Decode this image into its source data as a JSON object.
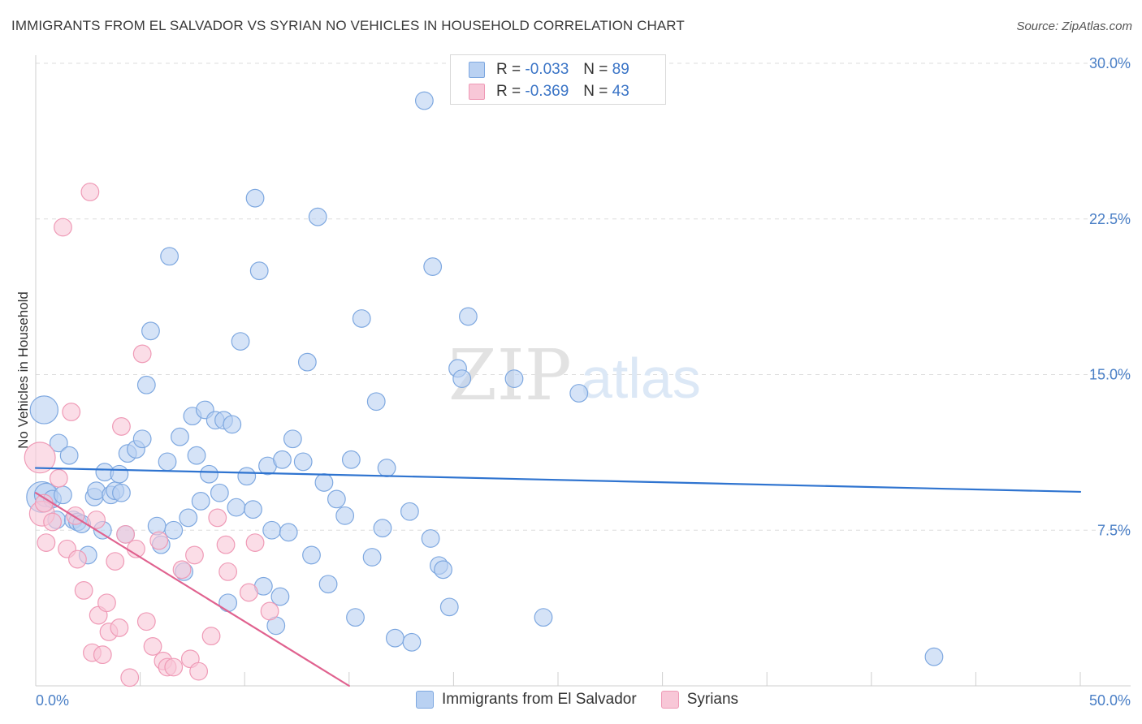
{
  "chart_data": {
    "type": "scatter",
    "title": "IMMIGRANTS FROM EL SALVADOR VS SYRIAN NO VEHICLES IN HOUSEHOLD CORRELATION CHART",
    "source": "Source: ZipAtlas.com",
    "xlabel": "",
    "ylabel": "No Vehicles in Household",
    "xlim": [
      0,
      50
    ],
    "ylim": [
      0,
      30
    ],
    "x_tick_labels": [
      "0.0%",
      "50.0%"
    ],
    "y_ticks": [
      7.5,
      15.0,
      22.5,
      30.0
    ],
    "y_tick_labels": [
      "7.5%",
      "15.0%",
      "22.5%",
      "30.0%"
    ],
    "grid": true,
    "watermark": {
      "zip": "ZIP",
      "atlas": "atlas"
    },
    "legend": {
      "r_label": "R =",
      "n_label": "N =",
      "rows": [
        {
          "r": "-0.033",
          "n": "89"
        },
        {
          "r": "-0.369",
          "n": "43"
        }
      ]
    },
    "series": [
      {
        "name": "Immigrants from El Salvador",
        "color": "#7ea8e0",
        "fill": "#b9d1f2",
        "line_color": "#2f74d0",
        "trend": {
          "x": [
            0,
            50
          ],
          "y": [
            10.5,
            9.35
          ]
        },
        "points": [
          [
            0.3,
            9.1,
            2.1
          ],
          [
            0.4,
            13.3,
            1.9
          ],
          [
            0.5,
            9.2,
            1.6
          ],
          [
            0.8,
            9.0,
            1.2
          ],
          [
            1.0,
            8.0,
            1.2
          ],
          [
            1.1,
            11.7,
            1.2
          ],
          [
            1.3,
            9.2,
            1.2
          ],
          [
            1.6,
            11.1,
            1.2
          ],
          [
            1.8,
            8.0,
            1.2
          ],
          [
            2.0,
            7.9,
            1.2
          ],
          [
            2.2,
            7.8,
            1.2
          ],
          [
            2.5,
            6.3,
            1.2
          ],
          [
            2.8,
            9.1,
            1.2
          ],
          [
            2.9,
            9.4,
            1.2
          ],
          [
            3.2,
            7.5,
            1.2
          ],
          [
            3.3,
            10.3,
            1.2
          ],
          [
            3.6,
            9.2,
            1.2
          ],
          [
            3.8,
            9.4,
            1.2
          ],
          [
            4.0,
            10.2,
            1.2
          ],
          [
            4.1,
            9.3,
            1.2
          ],
          [
            4.3,
            7.3,
            1.2
          ],
          [
            4.4,
            11.2,
            1.2
          ],
          [
            4.8,
            11.4,
            1.2
          ],
          [
            5.1,
            11.9,
            1.2
          ],
          [
            5.3,
            14.5,
            1.2
          ],
          [
            5.5,
            17.1,
            1.2
          ],
          [
            5.8,
            7.7,
            1.2
          ],
          [
            6.0,
            6.8,
            1.2
          ],
          [
            6.3,
            10.8,
            1.2
          ],
          [
            6.4,
            20.7,
            1.2
          ],
          [
            6.6,
            7.5,
            1.2
          ],
          [
            6.9,
            12.0,
            1.2
          ],
          [
            7.1,
            5.5,
            1.2
          ],
          [
            7.3,
            8.1,
            1.2
          ],
          [
            7.5,
            13.0,
            1.2
          ],
          [
            7.7,
            11.1,
            1.2
          ],
          [
            7.9,
            8.9,
            1.2
          ],
          [
            8.1,
            13.3,
            1.2
          ],
          [
            8.3,
            10.2,
            1.2
          ],
          [
            8.6,
            12.8,
            1.2
          ],
          [
            8.8,
            9.3,
            1.2
          ],
          [
            9.0,
            12.8,
            1.2
          ],
          [
            9.2,
            4.0,
            1.2
          ],
          [
            9.4,
            12.6,
            1.2
          ],
          [
            9.6,
            8.6,
            1.2
          ],
          [
            9.8,
            16.6,
            1.2
          ],
          [
            10.1,
            10.1,
            1.2
          ],
          [
            10.4,
            8.5,
            1.2
          ],
          [
            10.5,
            23.5,
            1.2
          ],
          [
            10.7,
            20.0,
            1.2
          ],
          [
            10.9,
            4.8,
            1.2
          ],
          [
            11.1,
            10.6,
            1.2
          ],
          [
            11.3,
            7.5,
            1.2
          ],
          [
            11.5,
            2.9,
            1.2
          ],
          [
            11.7,
            4.3,
            1.2
          ],
          [
            11.8,
            10.9,
            1.2
          ],
          [
            12.1,
            7.4,
            1.2
          ],
          [
            12.3,
            11.9,
            1.2
          ],
          [
            12.8,
            10.8,
            1.2
          ],
          [
            13.0,
            15.6,
            1.2
          ],
          [
            13.2,
            6.3,
            1.2
          ],
          [
            13.5,
            22.6,
            1.2
          ],
          [
            13.8,
            9.8,
            1.2
          ],
          [
            14.0,
            4.9,
            1.2
          ],
          [
            14.4,
            9.0,
            1.2
          ],
          [
            14.8,
            8.2,
            1.2
          ],
          [
            15.1,
            10.9,
            1.2
          ],
          [
            15.3,
            3.3,
            1.2
          ],
          [
            15.6,
            17.7,
            1.2
          ],
          [
            16.1,
            6.2,
            1.2
          ],
          [
            16.3,
            13.7,
            1.2
          ],
          [
            16.6,
            7.6,
            1.2
          ],
          [
            16.8,
            10.5,
            1.2
          ],
          [
            17.2,
            2.3,
            1.2
          ],
          [
            17.9,
            8.4,
            1.2
          ],
          [
            18.0,
            2.1,
            1.2
          ],
          [
            18.6,
            28.2,
            1.2
          ],
          [
            18.9,
            7.1,
            1.2
          ],
          [
            19.0,
            20.2,
            1.2
          ],
          [
            19.3,
            5.8,
            1.2
          ],
          [
            19.5,
            5.6,
            1.2
          ],
          [
            19.8,
            3.8,
            1.2
          ],
          [
            20.2,
            15.3,
            1.2
          ],
          [
            20.4,
            14.8,
            1.2
          ],
          [
            20.7,
            17.8,
            1.2
          ],
          [
            22.9,
            14.8,
            1.2
          ],
          [
            24.3,
            3.3,
            1.2
          ],
          [
            26.0,
            14.1,
            1.2
          ],
          [
            43.0,
            1.4,
            1.2
          ]
        ]
      },
      {
        "name": "Syrians",
        "color": "#ef9ab6",
        "fill": "#f8c7d7",
        "line_color": "#e0628f",
        "trend": {
          "x": [
            0,
            15
          ],
          "y": [
            9.3,
            0.0
          ]
        },
        "points": [
          [
            0.2,
            11.0,
            2.1
          ],
          [
            0.3,
            8.3,
            1.7
          ],
          [
            0.5,
            6.9,
            1.2
          ],
          [
            0.8,
            7.9,
            1.2
          ],
          [
            1.1,
            10.0,
            1.2
          ],
          [
            1.5,
            6.6,
            1.2
          ],
          [
            1.7,
            13.2,
            1.2
          ],
          [
            1.9,
            8.2,
            1.2
          ],
          [
            2.0,
            6.1,
            1.2
          ],
          [
            2.3,
            4.6,
            1.2
          ],
          [
            2.6,
            23.8,
            1.2
          ],
          [
            2.7,
            1.6,
            1.2
          ],
          [
            2.9,
            8.0,
            1.2
          ],
          [
            3.0,
            3.4,
            1.2
          ],
          [
            3.2,
            1.5,
            1.2
          ],
          [
            3.4,
            4.0,
            1.2
          ],
          [
            3.5,
            2.6,
            1.2
          ],
          [
            3.8,
            6.0,
            1.2
          ],
          [
            4.0,
            2.8,
            1.2
          ],
          [
            4.1,
            12.5,
            1.2
          ],
          [
            4.3,
            7.3,
            1.2
          ],
          [
            4.5,
            0.4,
            1.2
          ],
          [
            4.8,
            6.6,
            1.2
          ],
          [
            5.1,
            16.0,
            1.2
          ],
          [
            5.3,
            3.1,
            1.2
          ],
          [
            5.6,
            1.9,
            1.2
          ],
          [
            5.9,
            7.0,
            1.2
          ],
          [
            6.1,
            1.2,
            1.2
          ],
          [
            6.3,
            0.9,
            1.2
          ],
          [
            6.6,
            0.9,
            1.2
          ],
          [
            7.0,
            5.6,
            1.2
          ],
          [
            7.4,
            1.3,
            1.2
          ],
          [
            7.6,
            6.3,
            1.2
          ],
          [
            7.8,
            0.7,
            1.2
          ],
          [
            8.4,
            2.4,
            1.2
          ],
          [
            8.7,
            8.1,
            1.2
          ],
          [
            9.1,
            6.8,
            1.2
          ],
          [
            9.2,
            5.5,
            1.2
          ],
          [
            10.2,
            4.5,
            1.2
          ],
          [
            10.5,
            6.9,
            1.2
          ],
          [
            11.2,
            3.6,
            1.2
          ],
          [
            1.3,
            22.1,
            1.2
          ],
          [
            0.4,
            8.8,
            1.2
          ]
        ]
      }
    ]
  }
}
